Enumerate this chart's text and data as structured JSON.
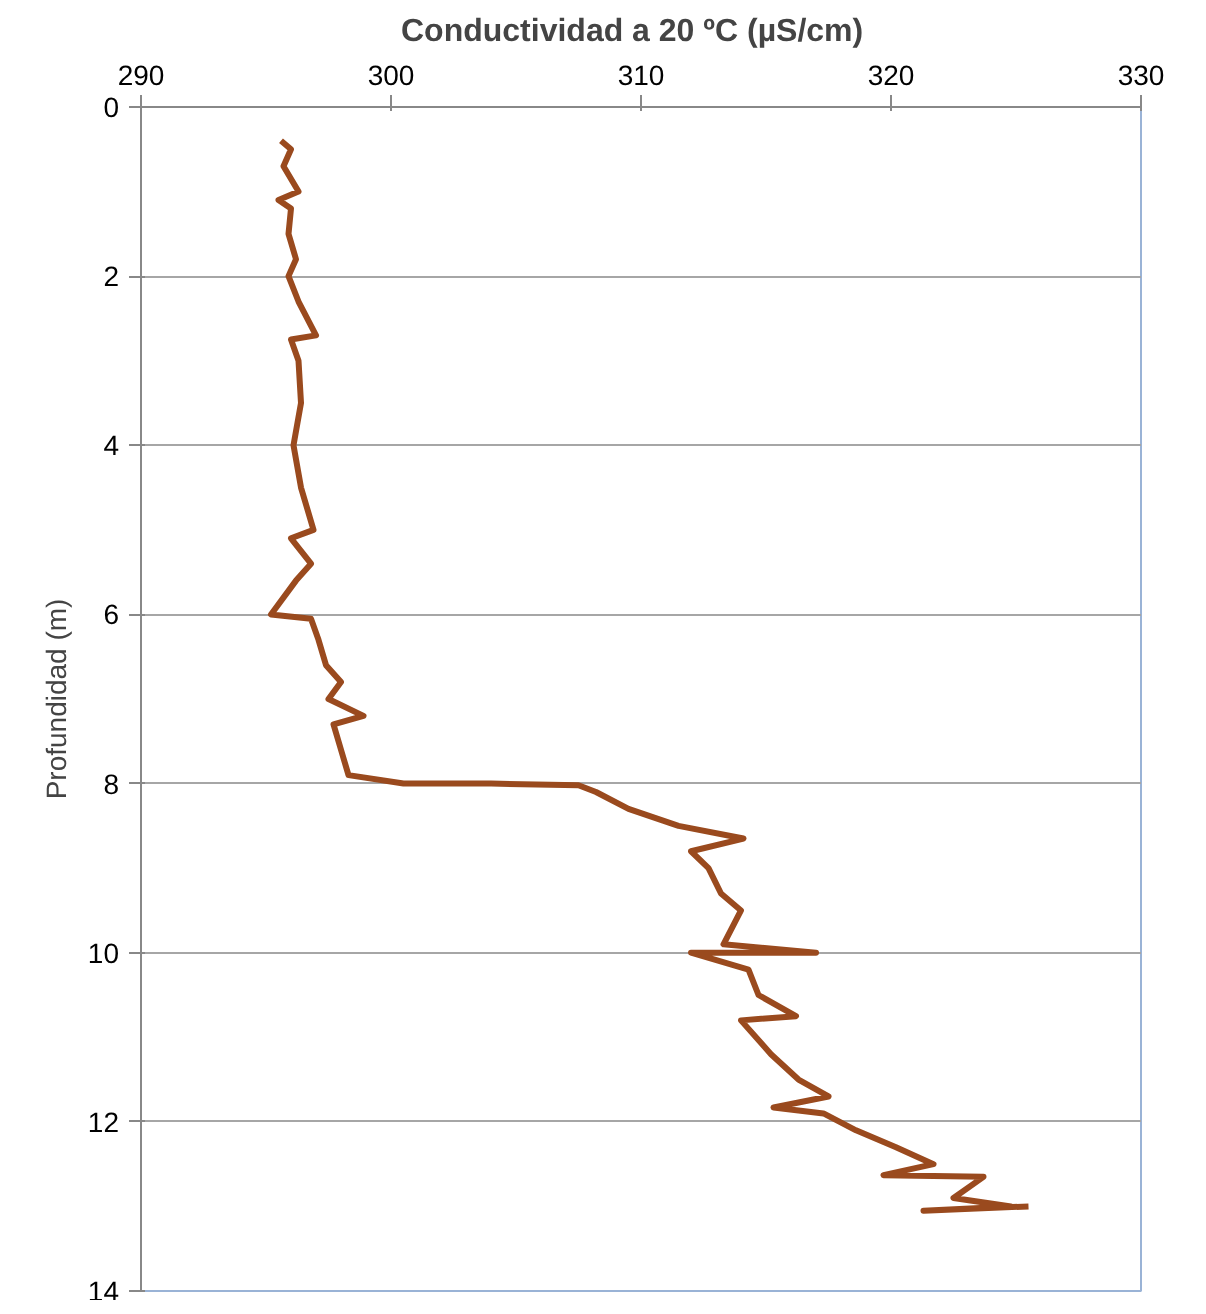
{
  "chart_data": {
    "type": "line",
    "title": "Conductividad  a  20 ºC (µS/cm)",
    "ylabel": "Profundidad (m)",
    "xlim": [
      290,
      330
    ],
    "xticks": [
      290,
      300,
      310,
      320,
      330
    ],
    "ylim": [
      14,
      0
    ],
    "yticks": [
      0,
      2,
      4,
      6,
      8,
      10,
      12,
      14
    ],
    "grid": "y",
    "series": [
      {
        "color": "#9a4a1e",
        "x": [
          295.6,
          296.0,
          295.7,
          296.3,
          295.5,
          296.0,
          295.9,
          296.2,
          295.9,
          296.3,
          297.0,
          296.0,
          296.3,
          296.4,
          296.1,
          296.4,
          296.9,
          296.0,
          296.8,
          296.2,
          295.2,
          296.8,
          297.1,
          297.4,
          298.0,
          297.5,
          298.9,
          297.7,
          298.0,
          298.3,
          300.5,
          304.0,
          307.5,
          308.2,
          309.5,
          311.5,
          314.1,
          312.0,
          312.7,
          313.2,
          314.0,
          313.3,
          317.0,
          312.0,
          314.3,
          314.7,
          316.2,
          314.0,
          315.2,
          316.3,
          317.5,
          315.3,
          317.3,
          318.6,
          320.2,
          321.7,
          319.7,
          323.7,
          322.5,
          324.8,
          321.3,
          325.5
        ],
        "values": [
          0.4,
          0.5,
          0.7,
          1.0,
          1.1,
          1.2,
          1.5,
          1.8,
          2.0,
          2.3,
          2.7,
          2.75,
          3.0,
          3.5,
          4.0,
          4.5,
          5.0,
          5.1,
          5.4,
          5.6,
          6.0,
          6.05,
          6.3,
          6.6,
          6.8,
          7.0,
          7.2,
          7.3,
          7.6,
          7.9,
          8.0,
          8.0,
          8.02,
          8.1,
          8.3,
          8.5,
          8.65,
          8.8,
          9.0,
          9.3,
          9.5,
          9.9,
          10.0,
          10.0,
          10.2,
          10.5,
          10.75,
          10.8,
          11.2,
          11.5,
          11.7,
          11.83,
          11.9,
          12.1,
          12.3,
          12.5,
          12.63,
          12.65,
          12.9,
          13.0,
          13.05,
          13.0
        ]
      }
    ]
  }
}
